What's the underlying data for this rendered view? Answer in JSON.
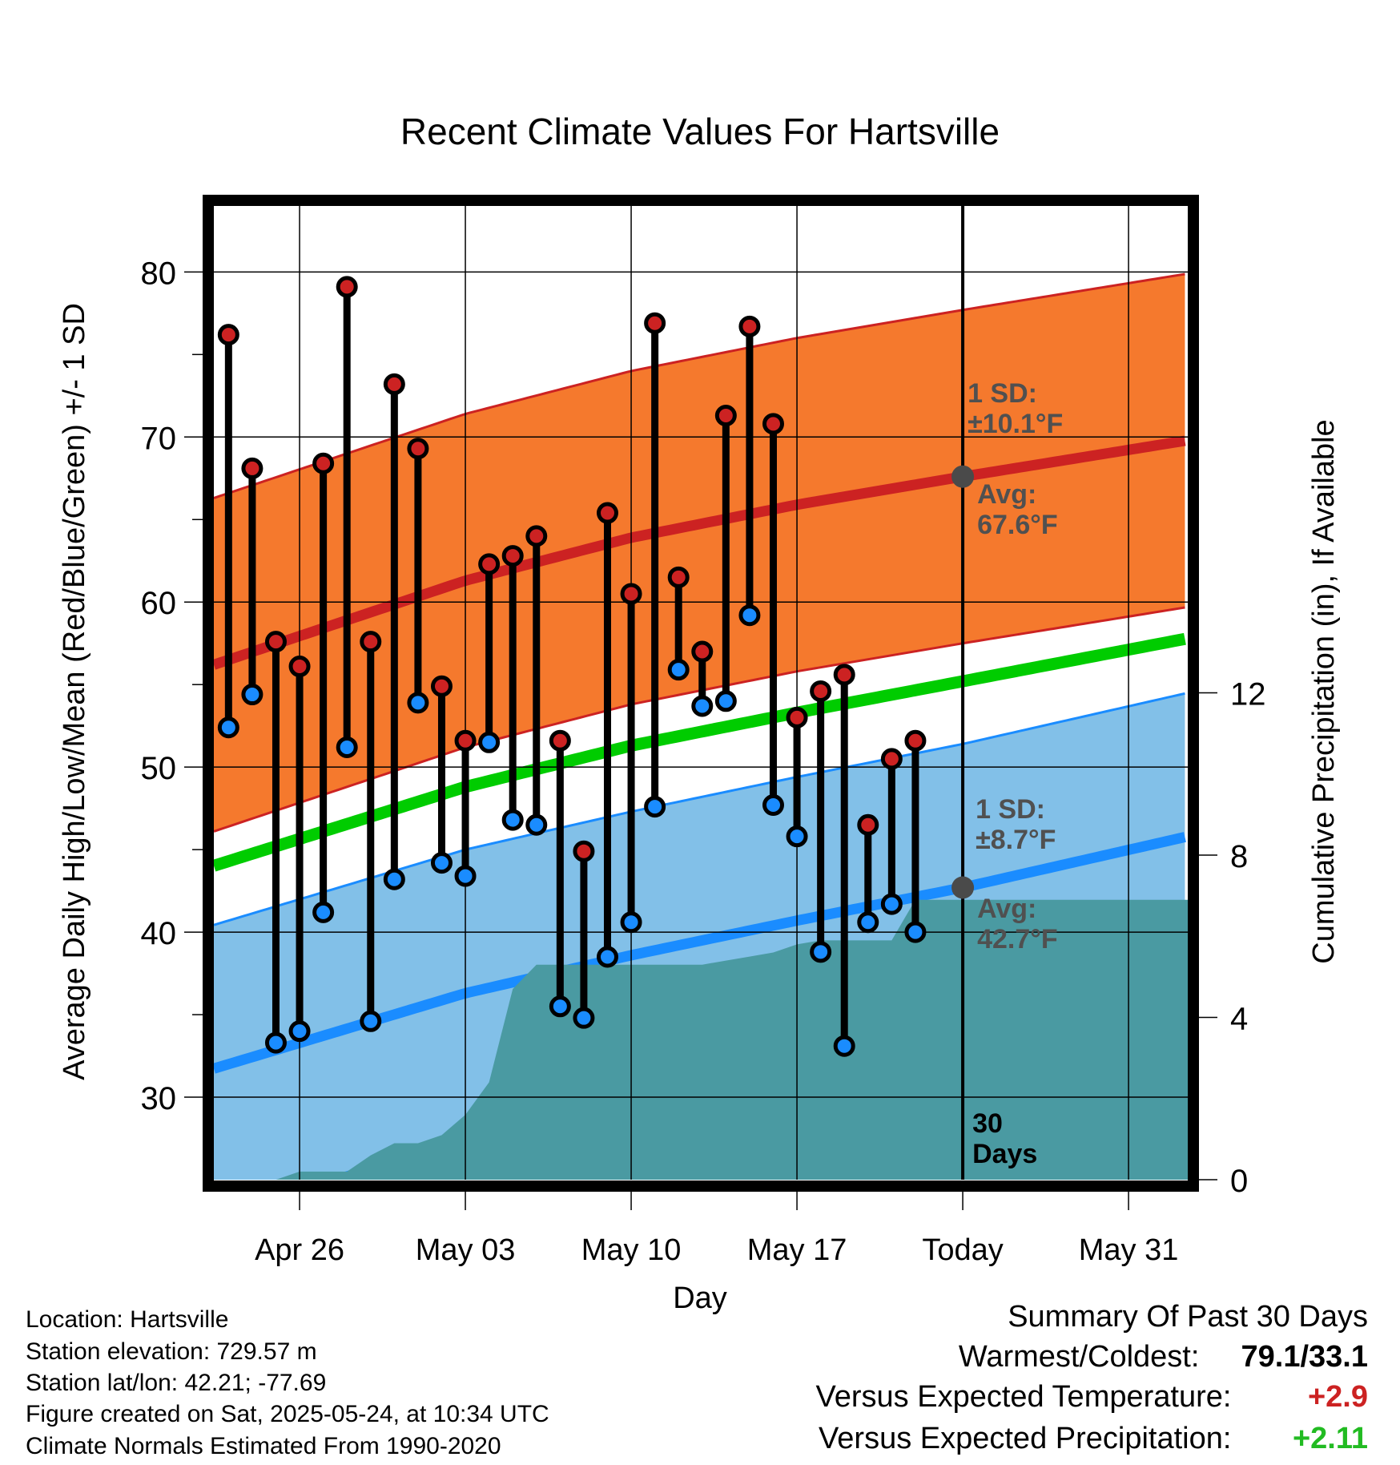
{
  "chart_data": {
    "type": "line",
    "title": "Recent Climate Values For Hartsville",
    "xlabel": "Day",
    "ylabel": "Average Daily High/Low/Mean (Red/Blue/Green) +/- 1 SD",
    "y2label": "Cumulative Precipitation (in), If Available",
    "ylim": [
      25,
      84
    ],
    "y2lim": [
      0,
      24
    ],
    "x_ticks": [
      {
        "day": 4,
        "label": "Apr 26"
      },
      {
        "day": 11,
        "label": "May 03"
      },
      {
        "day": 18,
        "label": "May 10"
      },
      {
        "day": 25,
        "label": "May 17"
      },
      {
        "day": 32,
        "label": "Today"
      },
      {
        "day": 39,
        "label": "May 31"
      }
    ],
    "y_ticks": [
      30,
      40,
      50,
      60,
      70,
      80
    ],
    "y2_ticks": [
      0,
      4,
      8,
      12
    ],
    "today_day": 32,
    "period_label": [
      "30",
      "Days"
    ],
    "normals": {
      "days": [
        1,
        11,
        18,
        25,
        32,
        41.5
      ],
      "high_mean": [
        56.5,
        61.3,
        63.9,
        65.9,
        67.6,
        69.8
      ],
      "high_sd": 10.1,
      "low_mean": [
        32.0,
        36.3,
        38.6,
        40.7,
        42.7,
        45.8
      ],
      "low_sd": 8.7,
      "daily_mean": [
        44.3,
        48.8,
        51.3,
        53.3,
        55.2,
        57.8
      ]
    },
    "annotations": {
      "high_sd_label": [
        "1 SD:",
        "±10.1°F"
      ],
      "high_avg_label": [
        "Avg:",
        "67.6°F"
      ],
      "low_sd_label": [
        "1 SD:",
        "±8.7°F"
      ],
      "low_avg_label": [
        "Avg:",
        "42.7°F"
      ],
      "high_avg_value": 67.6,
      "low_avg_value": 42.7
    },
    "series": [
      {
        "name": "High",
        "color": "#cc2222",
        "values": [
          76.2,
          68.1,
          57.6,
          56.1,
          68.4,
          79.1,
          57.6,
          73.2,
          69.3,
          54.9,
          51.6,
          62.3,
          62.8,
          64.0,
          51.6,
          44.9,
          65.4,
          60.5,
          76.9,
          61.5,
          57.0,
          71.3,
          76.7,
          70.8,
          53.0,
          54.6,
          55.6,
          46.5,
          50.5,
          51.6
        ]
      },
      {
        "name": "Low",
        "color": "#1a8cff",
        "values": [
          52.4,
          54.4,
          33.3,
          34.0,
          41.2,
          51.2,
          34.6,
          43.2,
          53.9,
          44.2,
          43.4,
          51.5,
          46.8,
          46.5,
          35.5,
          34.8,
          38.5,
          40.6,
          47.6,
          55.9,
          53.7,
          54.0,
          59.2,
          47.7,
          45.8,
          38.8,
          33.1,
          40.6,
          41.7,
          40.0
        ]
      }
    ],
    "precipitation": {
      "days": [
        1,
        3,
        4,
        5,
        6,
        7,
        8,
        9,
        10,
        11,
        12,
        13,
        14,
        15,
        16,
        17,
        18,
        19,
        20,
        21,
        22,
        23,
        24,
        25,
        26,
        27,
        28,
        29,
        30,
        31,
        32,
        41.5
      ],
      "values": [
        0.0,
        0.0,
        0.2,
        0.2,
        0.2,
        0.6,
        0.9,
        0.9,
        1.1,
        1.6,
        2.4,
        4.7,
        5.3,
        5.3,
        5.3,
        5.3,
        5.3,
        5.3,
        5.3,
        5.3,
        5.4,
        5.5,
        5.6,
        5.8,
        5.9,
        5.9,
        5.9,
        5.9,
        6.9,
        6.9,
        6.9,
        6.9
      ]
    },
    "colors": {
      "high_band": "#f5792d",
      "high_line": "#cc2222",
      "low_band": "#82c0e8",
      "low_line": "#1a8cff",
      "mean_line": "#00cc00",
      "precip": "#4a9aa2",
      "annotation": "#505050"
    }
  },
  "footer": {
    "location": "Location: Hartsville",
    "elevation": "Station elevation: 729.57 m",
    "latlon": "Station lat/lon: 42.21; -77.69",
    "created": "Figure created on Sat, 2025-05-24, at 10:34 UTC",
    "normals": "Climate Normals Estimated From 1990-2020"
  },
  "summary": {
    "heading": "Summary Of Past 30 Days",
    "warmest_label": "Warmest/Coldest:",
    "warmest_value": "79.1/33.1",
    "temp_label": "Versus Expected Temperature:",
    "temp_value": "+2.9",
    "temp_color": "#cc2222",
    "precip_label": "Versus Expected Precipitation:",
    "precip_value": "+2.11",
    "precip_color": "#22bb22"
  }
}
